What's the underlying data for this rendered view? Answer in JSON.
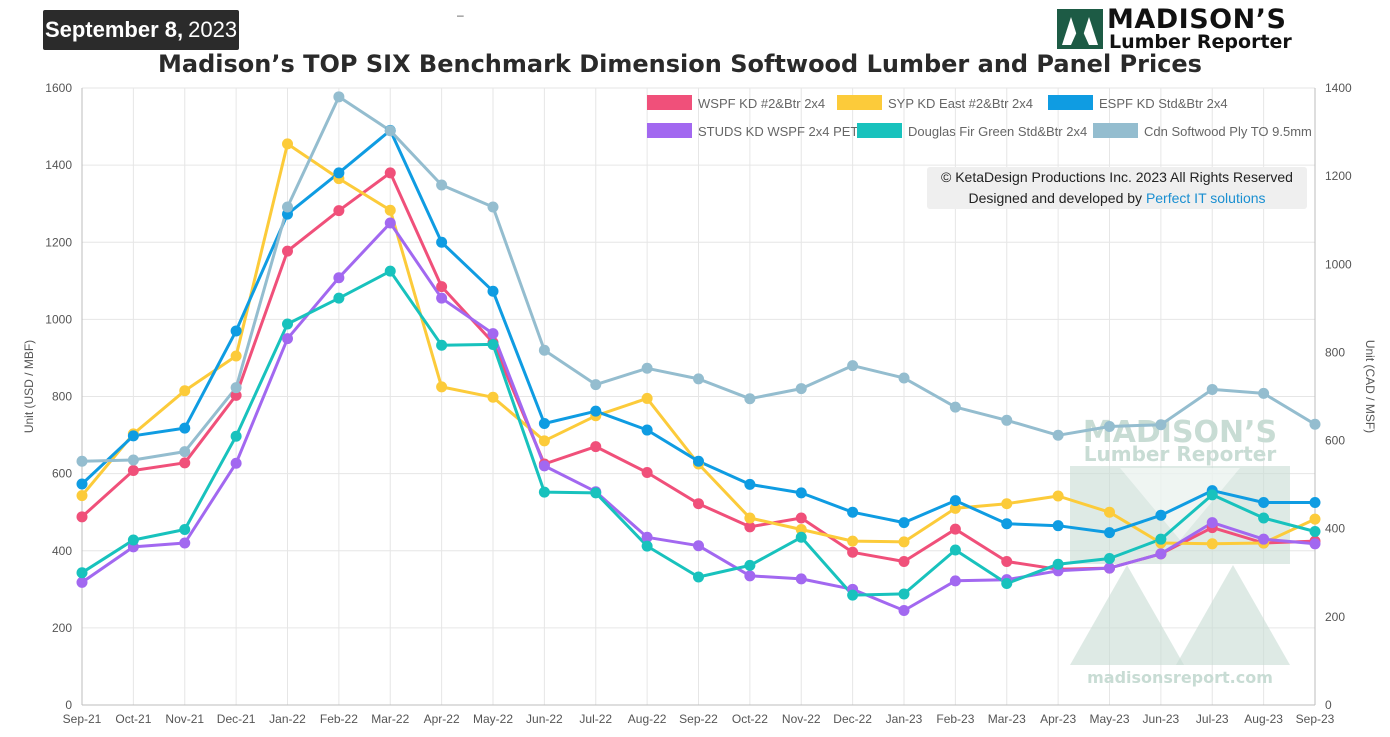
{
  "header": {
    "date_main": "September 8,",
    "date_year": "2023",
    "dash": "–",
    "brand_line1": "MADISON’S",
    "brand_line2": "Lumber Reporter"
  },
  "copyright": {
    "line1": "© KetaDesign Productions Inc. 2023 All Rights Reserved",
    "line2_prefix": "Designed and developed by ",
    "line2_link": "Perfect IT solutions"
  },
  "watermark": {
    "line1": "MADISON’S",
    "line2": "Lumber Reporter",
    "line3": "madisonsreport.com"
  },
  "chart_data": {
    "type": "line",
    "title": "Madison’s TOP SIX Benchmark Dimension Softwood Lumber and Panel Prices",
    "categories": [
      "Sep-21",
      "Oct-21",
      "Nov-21",
      "Dec-21",
      "Jan-22",
      "Feb-22",
      "Mar-22",
      "Apr-22",
      "May-22",
      "Jun-22",
      "Jul-22",
      "Aug-22",
      "Sep-22",
      "Oct-22",
      "Nov-22",
      "Dec-22",
      "Jan-23",
      "Feb-23",
      "Mar-23",
      "Apr-23",
      "May-23",
      "Jun-23",
      "Jul-23",
      "Aug-23",
      "Sep-23"
    ],
    "ylabel": "Unit (USD / MBF)",
    "ylabel_right": "Unit (CAD / MSF)",
    "ylim": [
      0,
      1600
    ],
    "ylim_right": [
      0,
      1400
    ],
    "yticks": [
      0,
      200,
      400,
      600,
      800,
      1000,
      1200,
      1400,
      1600
    ],
    "yticks_right": [
      0,
      200,
      400,
      600,
      800,
      1000,
      1200,
      1400
    ],
    "grid": true,
    "legend_position": "top-right",
    "series": [
      {
        "name": "WSPF KD #2&Btr 2x4",
        "color": "#f0507a",
        "axis": "left",
        "values": [
          488,
          608,
          628,
          803,
          1177,
          1282,
          1380,
          1085,
          940,
          625,
          670,
          603,
          522,
          462,
          485,
          396,
          372,
          456,
          372,
          352,
          355,
          392,
          460,
          420,
          425
        ]
      },
      {
        "name": "SYP KD East #2&Btr 2x4",
        "color": "#fccb3a",
        "axis": "left",
        "values": [
          543,
          703,
          815,
          905,
          1455,
          1365,
          1283,
          825,
          798,
          685,
          750,
          795,
          625,
          485,
          455,
          425,
          423,
          510,
          522,
          542,
          500,
          420,
          418,
          420,
          482
        ]
      },
      {
        "name": "ESPF KD Std&Btr 2x4",
        "color": "#0f9ce2",
        "axis": "left",
        "values": [
          573,
          698,
          718,
          970,
          1273,
          1380,
          1490,
          1200,
          1073,
          730,
          762,
          713,
          632,
          572,
          550,
          500,
          473,
          530,
          470,
          465,
          447,
          492,
          556,
          525,
          525
        ]
      },
      {
        "name": "STUDS KD WSPF 2x4 PET",
        "color": "#a268f0",
        "axis": "left",
        "values": [
          318,
          410,
          420,
          627,
          950,
          1108,
          1250,
          1055,
          963,
          620,
          553,
          435,
          413,
          335,
          327,
          300,
          245,
          322,
          325,
          348,
          355,
          392,
          473,
          430,
          418
        ]
      },
      {
        "name": "Douglas Fir Green Std&Btr 2x4",
        "color": "#18c2bd",
        "axis": "left",
        "values": [
          343,
          428,
          455,
          697,
          988,
          1055,
          1125,
          933,
          935,
          552,
          550,
          412,
          332,
          362,
          435,
          285,
          288,
          402,
          315,
          365,
          380,
          430,
          545,
          485,
          450
        ]
      },
      {
        "name": "Cdn Softwood Ply TO 9.5mm",
        "color": "#94bdcf",
        "axis": "right",
        "values": [
          553,
          556,
          575,
          720,
          1130,
          1380,
          1303,
          1180,
          1130,
          805,
          727,
          764,
          740,
          695,
          718,
          770,
          742,
          676,
          646,
          612,
          632,
          636,
          716,
          707,
          637
        ]
      }
    ]
  }
}
